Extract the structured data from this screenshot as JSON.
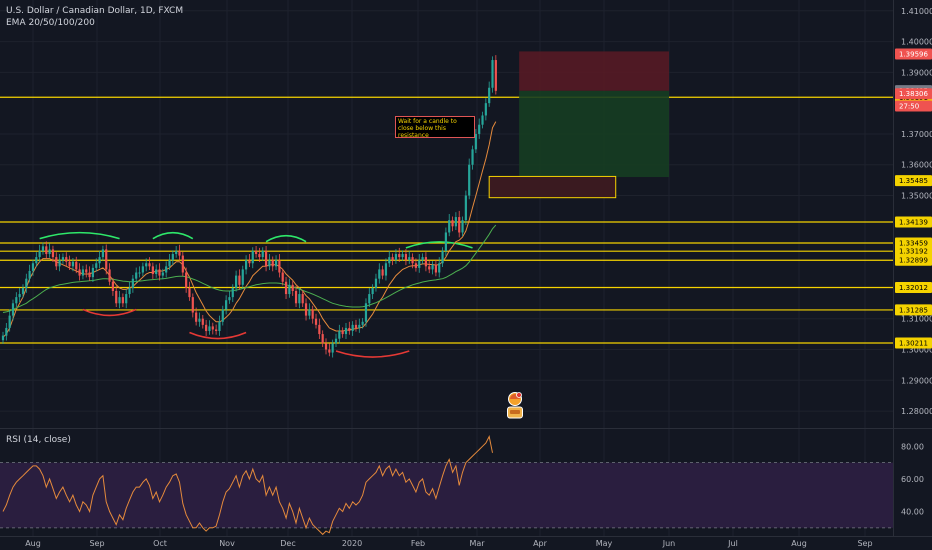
{
  "header": {
    "title": "U.S. Dollar / Canadian Dollar, 1D, FXCM",
    "indicator": "EMA 20/50/100/200"
  },
  "rsi": {
    "label": "RSI (14, close)",
    "ticks": [
      "80.00",
      "60.00",
      "40.00"
    ]
  },
  "annotation": {
    "text": "Wait for a candle to close below this resistance"
  },
  "colors": {
    "background": "#131722",
    "up": "#26a69a",
    "down": "#ef5350",
    "level": "#f5d300",
    "rsi_line": "#e58a3c",
    "rsi_band": "#2a1e3f",
    "ema_fast": "#e58a3c",
    "ema_slow": "#4caf50"
  },
  "chart_data": {
    "type": "candlestick",
    "symbol": "USDCAD",
    "timeframe": "1D",
    "y_ticks": [
      "1.41000",
      "1.40000",
      "1.39000",
      "1.37000",
      "1.36000",
      "1.35000",
      "1.31000",
      "1.30000",
      "1.29000",
      "1.28000"
    ],
    "x_ticks": [
      "Aug",
      "Sep",
      "Oct",
      "Nov",
      "Dec",
      "2020",
      "Feb",
      "Mar",
      "Apr",
      "May",
      "Jun",
      "Jul",
      "Aug",
      "Sep"
    ],
    "price_labels": [
      {
        "text": "1.39596",
        "value": 1.39596,
        "color": "#ef5350",
        "fg": "#ffffff"
      },
      {
        "text": "1.38191",
        "value": 1.38191,
        "color": "#f5d300",
        "fg": "#000000"
      },
      {
        "text": "1.38405",
        "value": 1.38405,
        "color": "#787b86",
        "fg": "#ffffff"
      },
      {
        "text": "1.38306",
        "value": 1.38306,
        "color": "#ef5350",
        "fg": "#ffffff"
      },
      {
        "text": "27:50",
        "value": 1.37906,
        "color": "#ef5350",
        "fg": "#ffffff"
      },
      {
        "text": "1.35485",
        "value": 1.35485,
        "color": "#f5d300",
        "fg": "#000000"
      },
      {
        "text": "1.34139",
        "value": 1.34139,
        "color": "#f5d300",
        "fg": "#000000"
      },
      {
        "text": "1.33459",
        "value": 1.33459,
        "color": "#f5d300",
        "fg": "#000000"
      },
      {
        "text": "1.33192",
        "value": 1.33192,
        "color": "#f5d300",
        "fg": "#000000"
      },
      {
        "text": "1.32899",
        "value": 1.32899,
        "color": "#f5d300",
        "fg": "#000000"
      },
      {
        "text": "1.32012",
        "value": 1.32012,
        "color": "#f5d300",
        "fg": "#000000"
      },
      {
        "text": "1.31285",
        "value": 1.31285,
        "color": "#f5d300",
        "fg": "#000000"
      },
      {
        "text": "1.30211",
        "value": 1.30211,
        "color": "#f5d300",
        "fg": "#000000"
      }
    ],
    "horizontal_levels": [
      1.38191,
      1.34139,
      1.33459,
      1.33192,
      1.32899,
      1.32012,
      1.31285,
      1.30211
    ],
    "ylim": [
      1.2745,
      1.4135
    ],
    "rsi_ylim": [
      25,
      90
    ],
    "rsi_bands": [
      70,
      30
    ],
    "closes": [
      1.3045,
      1.307,
      1.311,
      1.315,
      1.317,
      1.318,
      1.32,
      1.323,
      1.3255,
      1.328,
      1.33,
      1.332,
      1.3335,
      1.331,
      1.3325,
      1.33,
      1.327,
      1.329,
      1.33,
      1.3285,
      1.327,
      1.3285,
      1.326,
      1.324,
      1.326,
      1.325,
      1.3235,
      1.3265,
      1.328,
      1.33,
      1.3325,
      1.326,
      1.322,
      1.319,
      1.315,
      1.317,
      1.315,
      1.318,
      1.32,
      1.323,
      1.325,
      1.325,
      1.327,
      1.328,
      1.327,
      1.3245,
      1.326,
      1.324,
      1.325,
      1.327,
      1.329,
      1.331,
      1.332,
      1.3305,
      1.325,
      1.32,
      1.317,
      1.312,
      1.309,
      1.31,
      1.308,
      1.306,
      1.3075,
      1.3065,
      1.306,
      1.309,
      1.313,
      1.316,
      1.317,
      1.32,
      1.324,
      1.321,
      1.326,
      1.329,
      1.328,
      1.332,
      1.331,
      1.33,
      1.332,
      1.327,
      1.329,
      1.327,
      1.329,
      1.325,
      1.322,
      1.318,
      1.321,
      1.319,
      1.315,
      1.318,
      1.315,
      1.311,
      1.313,
      1.31,
      1.308,
      1.305,
      1.302,
      1.3,
      1.299,
      1.302,
      1.3035,
      1.306,
      1.305,
      1.307,
      1.306,
      1.308,
      1.307,
      1.308,
      1.309,
      1.315,
      1.318,
      1.32,
      1.323,
      1.326,
      1.324,
      1.328,
      1.33,
      1.329,
      1.331,
      1.33,
      1.331,
      1.329,
      1.33,
      1.328,
      1.3265,
      1.329,
      1.33,
      1.327,
      1.326,
      1.3275,
      1.325,
      1.328,
      1.332,
      1.338,
      1.342,
      1.34,
      1.343,
      1.338,
      1.342,
      1.35,
      1.36,
      1.365,
      1.37,
      1.373,
      1.376,
      1.38,
      1.385,
      1.394,
      1.384
    ],
    "ema_fast": [
      1.304,
      1.305,
      1.307,
      1.31,
      1.313,
      1.315,
      1.317,
      1.32,
      1.323,
      1.325,
      1.327,
      1.3285,
      1.3295,
      1.3295,
      1.3295,
      1.329,
      1.3285,
      1.328,
      1.3275,
      1.327,
      1.3265,
      1.326,
      1.3255,
      1.325,
      1.3245,
      1.3245,
      1.3245,
      1.325,
      1.3255,
      1.326,
      1.3265,
      1.3255,
      1.324,
      1.3225,
      1.321,
      1.32,
      1.3195,
      1.3195,
      1.32,
      1.3205,
      1.3215,
      1.3225,
      1.3235,
      1.3245,
      1.325,
      1.325,
      1.3255,
      1.3255,
      1.3255,
      1.326,
      1.3265,
      1.3275,
      1.3285,
      1.3285,
      1.3275,
      1.3255,
      1.3235,
      1.321,
      1.3185,
      1.3165,
      1.3145,
      1.3125,
      1.311,
      1.31,
      1.309,
      1.309,
      1.3095,
      1.3105,
      1.3115,
      1.313,
      1.315,
      1.3165,
      1.3185,
      1.3205,
      1.322,
      1.324,
      1.325,
      1.326,
      1.327,
      1.327,
      1.3275,
      1.3275,
      1.3275,
      1.327,
      1.326,
      1.3245,
      1.3235,
      1.3225,
      1.321,
      1.32,
      1.319,
      1.3175,
      1.3165,
      1.315,
      1.3135,
      1.312,
      1.31,
      1.3085,
      1.307,
      1.3065,
      1.306,
      1.306,
      1.306,
      1.3062,
      1.3064,
      1.3066,
      1.3068,
      1.307,
      1.3072,
      1.3085,
      1.31,
      1.3115,
      1.3135,
      1.3155,
      1.317,
      1.319,
      1.321,
      1.3225,
      1.324,
      1.325,
      1.326,
      1.3265,
      1.327,
      1.3272,
      1.3272,
      1.3275,
      1.3278,
      1.3278,
      1.3276,
      1.3276,
      1.3274,
      1.3276,
      1.3285,
      1.33,
      1.332,
      1.3335,
      1.335,
      1.3355,
      1.3365,
      1.3385,
      1.342,
      1.346,
      1.35,
      1.354,
      1.358,
      1.362,
      1.3665,
      1.372,
      1.374
    ],
    "ema_slow": [
      1.312,
      1.3122,
      1.3125,
      1.313,
      1.3135,
      1.314,
      1.3145,
      1.315,
      1.3158,
      1.3165,
      1.3172,
      1.318,
      1.3188,
      1.3195,
      1.32,
      1.3204,
      1.3207,
      1.321,
      1.3212,
      1.3214,
      1.3216,
      1.3218,
      1.3219,
      1.322,
      1.3221,
      1.3222,
      1.3223,
      1.3224,
      1.3226,
      1.3228,
      1.323,
      1.323,
      1.3229,
      1.3228,
      1.3226,
      1.3224,
      1.3222,
      1.3221,
      1.322,
      1.322,
      1.3221,
      1.3222,
      1.3223,
      1.3225,
      1.3226,
      1.3227,
      1.3228,
      1.3229,
      1.323,
      1.3231,
      1.3233,
      1.3235,
      1.3237,
      1.3238,
      1.3238,
      1.3236,
      1.3233,
      1.3229,
      1.3225,
      1.322,
      1.3215,
      1.321,
      1.3205,
      1.32,
      1.3196,
      1.3193,
      1.3191,
      1.319,
      1.319,
      1.3191,
      1.3193,
      1.3195,
      1.3198,
      1.3201,
      1.3204,
      1.3207,
      1.321,
      1.3212,
      1.3214,
      1.3215,
      1.3216,
      1.3216,
      1.3216,
      1.3215,
      1.3213,
      1.321,
      1.3207,
      1.3204,
      1.32,
      1.3196,
      1.3192,
      1.3188,
      1.3184,
      1.318,
      1.3175,
      1.317,
      1.3165,
      1.316,
      1.3155,
      1.315,
      1.3147,
      1.3144,
      1.3142,
      1.314,
      1.3139,
      1.3138,
      1.3138,
      1.3138,
      1.3139,
      1.3141,
      1.3144,
      1.3148,
      1.3152,
      1.3157,
      1.3162,
      1.3168,
      1.3174,
      1.318,
      1.3186,
      1.3192,
      1.3197,
      1.3202,
      1.3206,
      1.321,
      1.3213,
      1.3216,
      1.3219,
      1.3221,
      1.3223,
      1.3225,
      1.3226,
      1.3228,
      1.323,
      1.3234,
      1.324,
      1.3246,
      1.3253,
      1.3258,
      1.3264,
      1.3272,
      1.3284,
      1.3298,
      1.3313,
      1.3328,
      1.3343,
      1.3358,
      1.3374,
      1.3392,
      1.3404
    ],
    "rsi": [
      40,
      44,
      50,
      55,
      58,
      60,
      62,
      64,
      66,
      68,
      68,
      66,
      62,
      55,
      60,
      54,
      48,
      52,
      55,
      50,
      46,
      50,
      44,
      40,
      46,
      44,
      40,
      50,
      55,
      60,
      62,
      46,
      40,
      36,
      32,
      38,
      35,
      42,
      47,
      52,
      55,
      55,
      58,
      60,
      56,
      48,
      52,
      46,
      50,
      55,
      58,
      62,
      63,
      58,
      45,
      38,
      34,
      30,
      30,
      33,
      30,
      28,
      30,
      30,
      31,
      38,
      46,
      52,
      54,
      58,
      62,
      55,
      62,
      65,
      60,
      66,
      60,
      58,
      62,
      50,
      55,
      50,
      55,
      46,
      42,
      36,
      45,
      40,
      33,
      42,
      36,
      30,
      36,
      32,
      30,
      28,
      26,
      28,
      27,
      34,
      38,
      42,
      40,
      45,
      42,
      46,
      44,
      46,
      50,
      58,
      60,
      62,
      64,
      68,
      62,
      66,
      68,
      62,
      66,
      62,
      64,
      58,
      60,
      56,
      52,
      58,
      60,
      52,
      50,
      54,
      48,
      55,
      62,
      68,
      72,
      64,
      68,
      56,
      64,
      70,
      72,
      74,
      76,
      78,
      80,
      82,
      86,
      76
    ]
  }
}
